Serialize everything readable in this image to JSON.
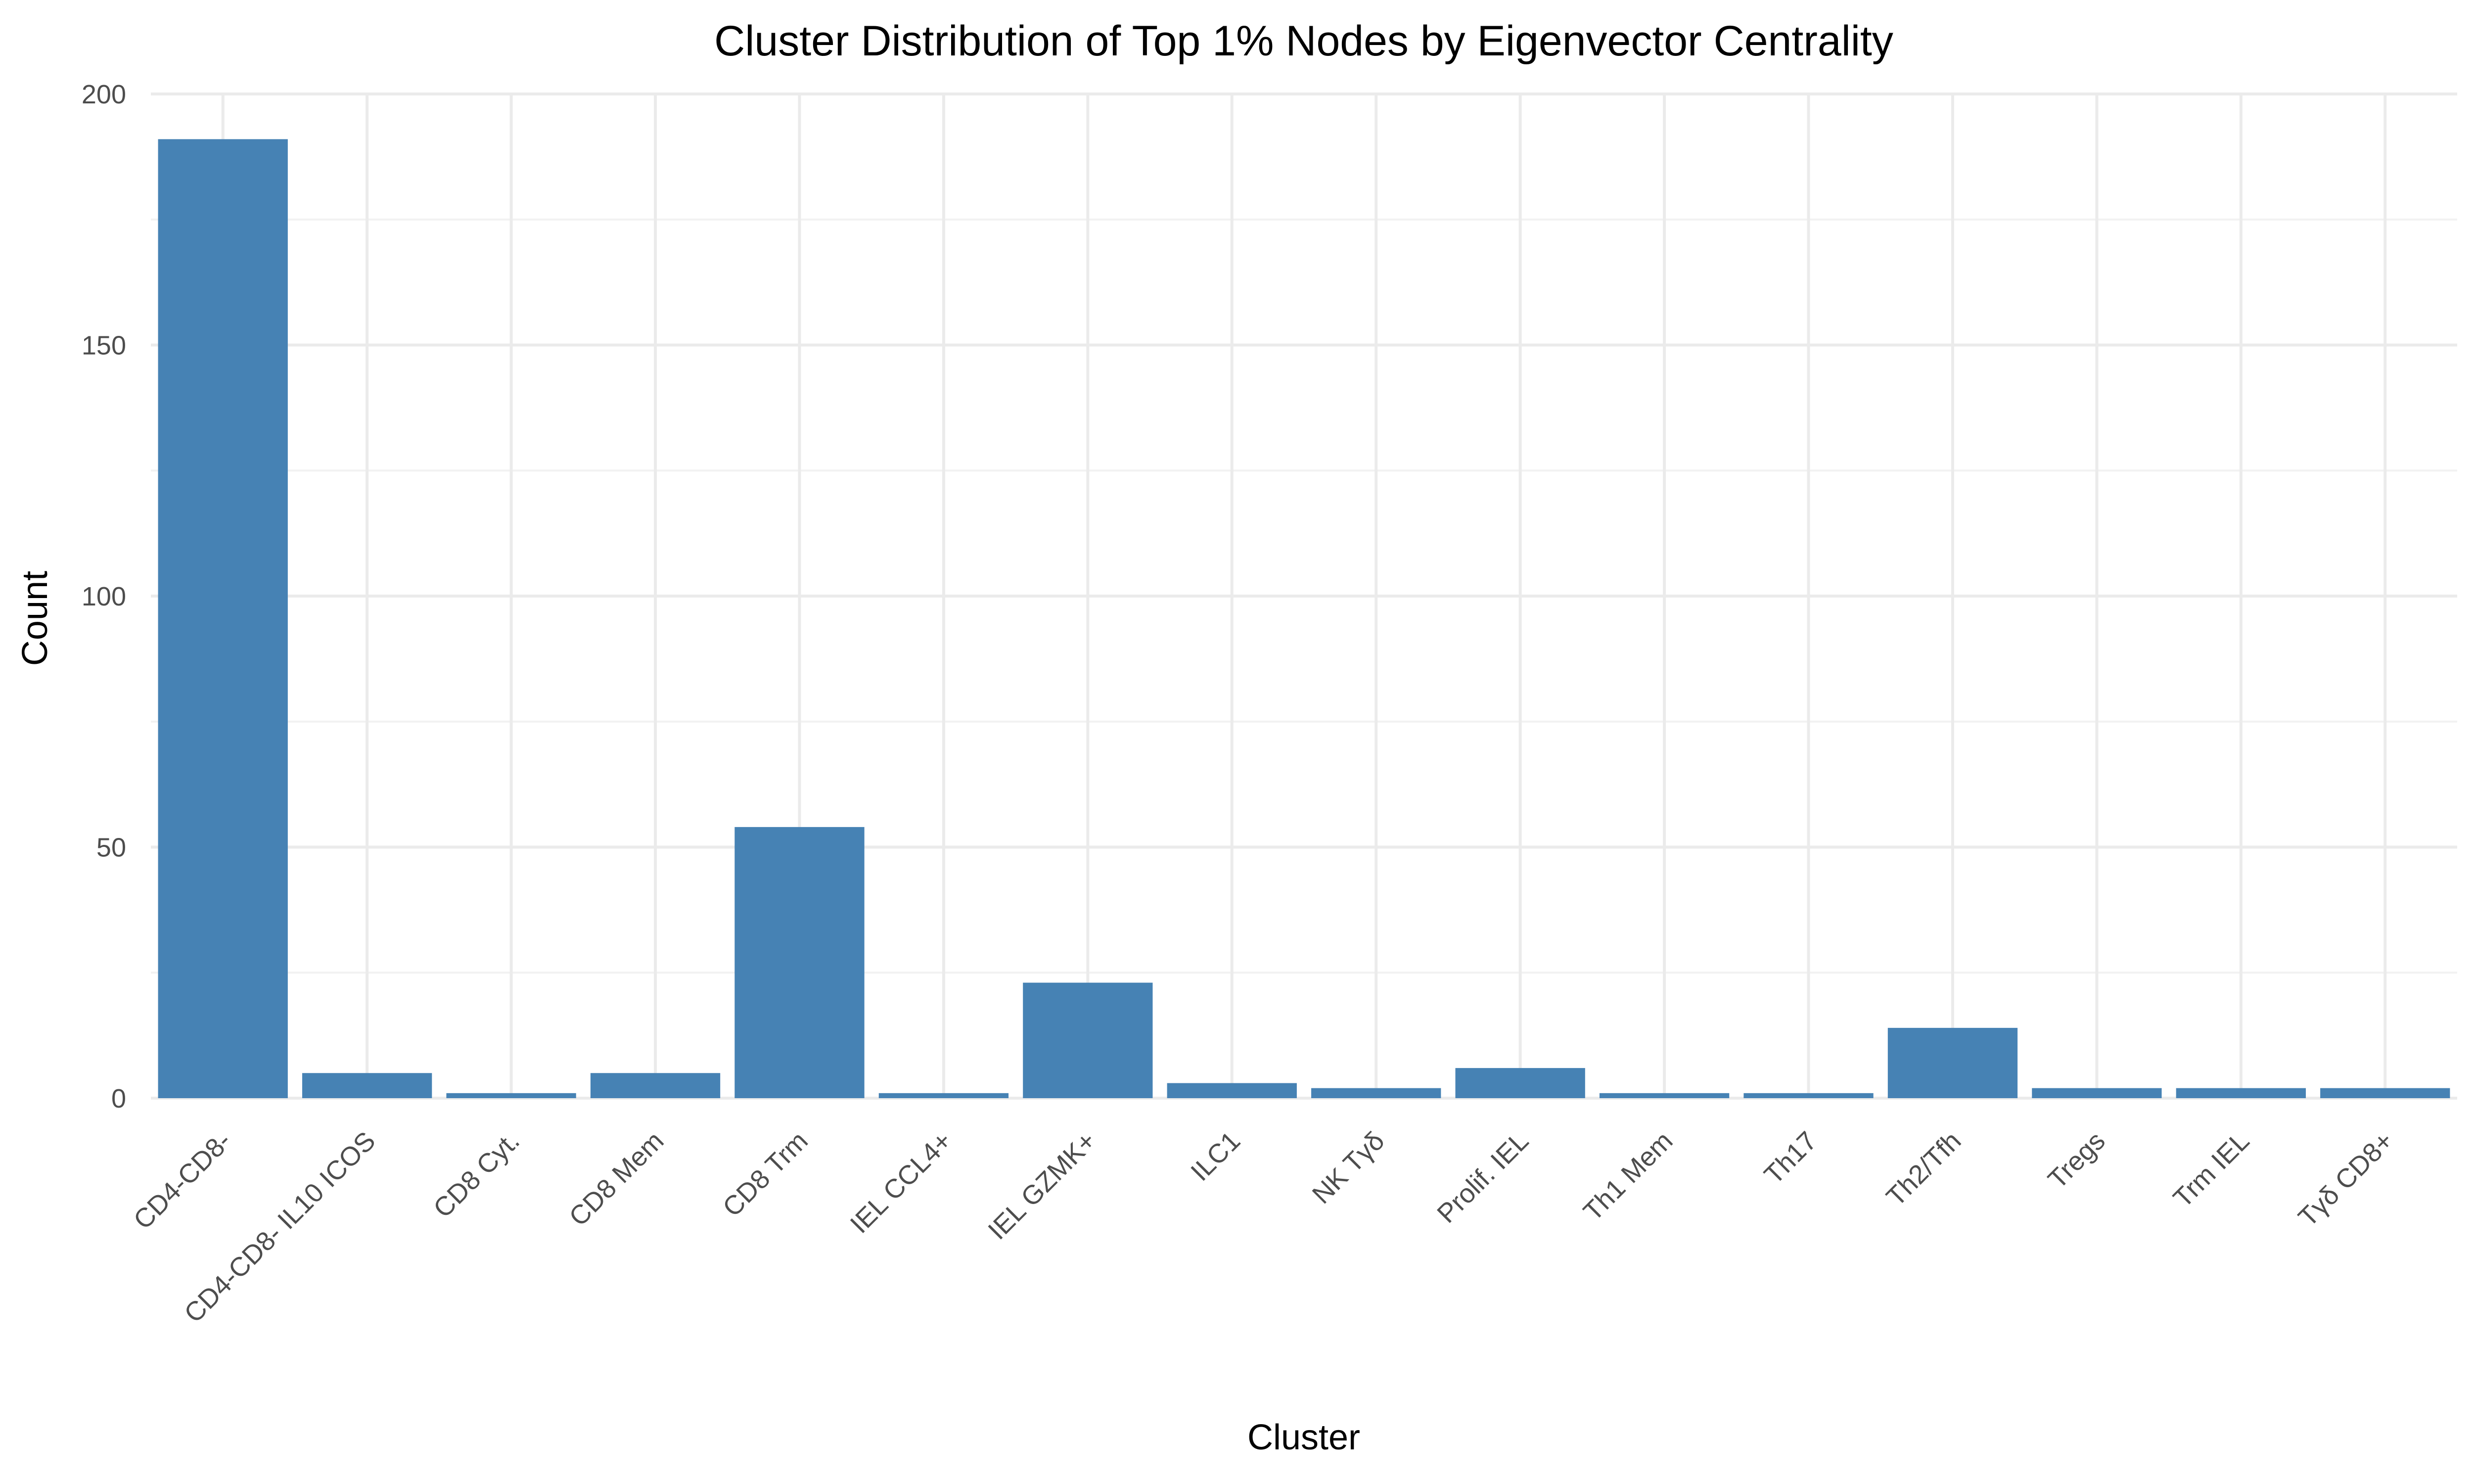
{
  "chart_data": {
    "type": "bar",
    "title": "Cluster Distribution of Top 1% Nodes by Eigenvector Centrality",
    "xlabel": "Cluster",
    "ylabel": "Count",
    "categories": [
      "CD4-CD8-",
      "CD4-CD8- IL10 ICOS",
      "CD8 Cyt.",
      "CD8 Mem",
      "CD8 Trm",
      "IEL CCL4+",
      "IEL GZMK+",
      "ILC1",
      "NK Tγδ",
      "Prolif. IEL",
      "Th1 Mem",
      "Th17",
      "Th2/Tfh",
      "Tregs",
      "Trm IEL",
      "Tγδ CD8+"
    ],
    "values": [
      191,
      5,
      1,
      5,
      54,
      1,
      23,
      3,
      2,
      6,
      1,
      1,
      14,
      2,
      2,
      2
    ],
    "ylim": [
      0,
      200
    ],
    "yticks": [
      0,
      50,
      100,
      150,
      200
    ],
    "grid": true,
    "legend": "none",
    "bar_color": "#4682B4",
    "x_tick_rotation": "45"
  }
}
